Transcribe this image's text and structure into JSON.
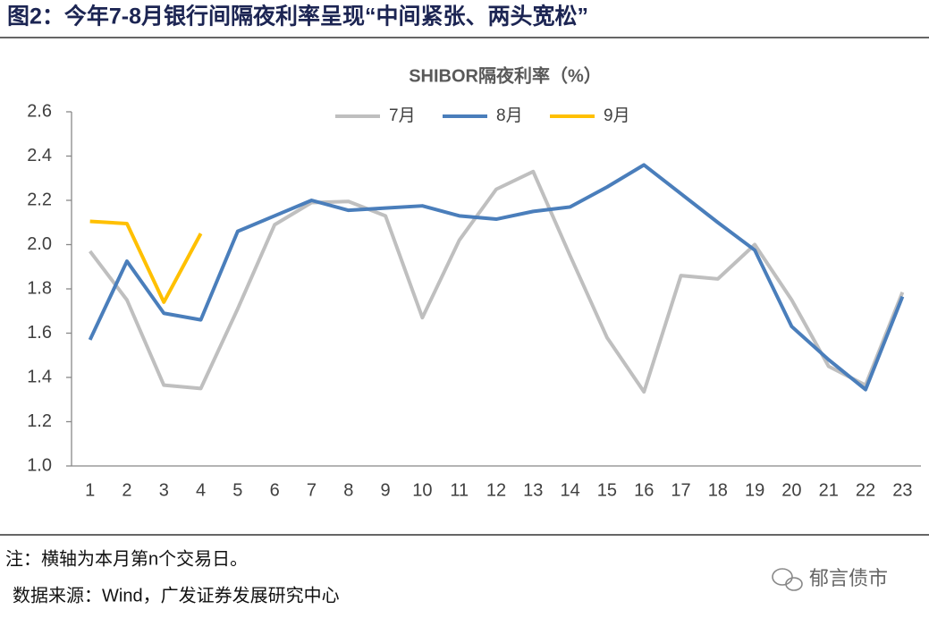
{
  "header": {
    "title": "图2：今年7-8月银行间隔夜利率呈现“中间紧张、两头宽松”"
  },
  "chart_data": {
    "type": "line",
    "title": "SHIBOR隔夜利率（%）",
    "categories": [
      "1",
      "2",
      "3",
      "4",
      "5",
      "6",
      "7",
      "8",
      "9",
      "10",
      "11",
      "12",
      "13",
      "14",
      "15",
      "16",
      "17",
      "18",
      "19",
      "20",
      "21",
      "22",
      "23"
    ],
    "series": [
      {
        "name": "7月",
        "color": "#bfbfbf",
        "values": [
          1.97,
          1.75,
          1.365,
          1.35,
          1.71,
          2.09,
          2.19,
          2.195,
          2.13,
          1.67,
          2.02,
          2.25,
          2.33,
          1.95,
          1.58,
          1.335,
          1.86,
          1.845,
          2.0,
          1.75,
          1.45,
          1.365,
          1.785
        ]
      },
      {
        "name": "8月",
        "color": "#4a7ebb",
        "values": [
          1.57,
          1.925,
          1.69,
          1.66,
          2.06,
          2.13,
          2.2,
          2.155,
          2.165,
          2.175,
          2.13,
          2.115,
          2.15,
          2.17,
          2.26,
          2.36,
          2.23,
          2.1,
          1.975,
          1.63,
          1.48,
          1.345,
          1.765
        ]
      },
      {
        "name": "9月",
        "color": "#ffc000",
        "values": [
          2.105,
          2.095,
          1.74,
          2.05,
          null,
          null,
          null,
          null,
          null,
          null,
          null,
          null,
          null,
          null,
          null,
          null,
          null,
          null,
          null,
          null,
          null,
          null,
          null
        ]
      }
    ],
    "ylim": [
      1,
      2.6
    ],
    "yticks": [
      {
        "value": 1,
        "label": "1.0"
      },
      1.2,
      1.4,
      1.6,
      1.8,
      {
        "value": 2,
        "label": "2.0"
      },
      2.2,
      2.4,
      2.6
    ],
    "legend": "top"
  },
  "footer": {
    "note": "注：横轴为本月第n个交易日。",
    "source": "数据来源：Wind，广发证券发展研究中心",
    "watermark": "郁言债市"
  }
}
